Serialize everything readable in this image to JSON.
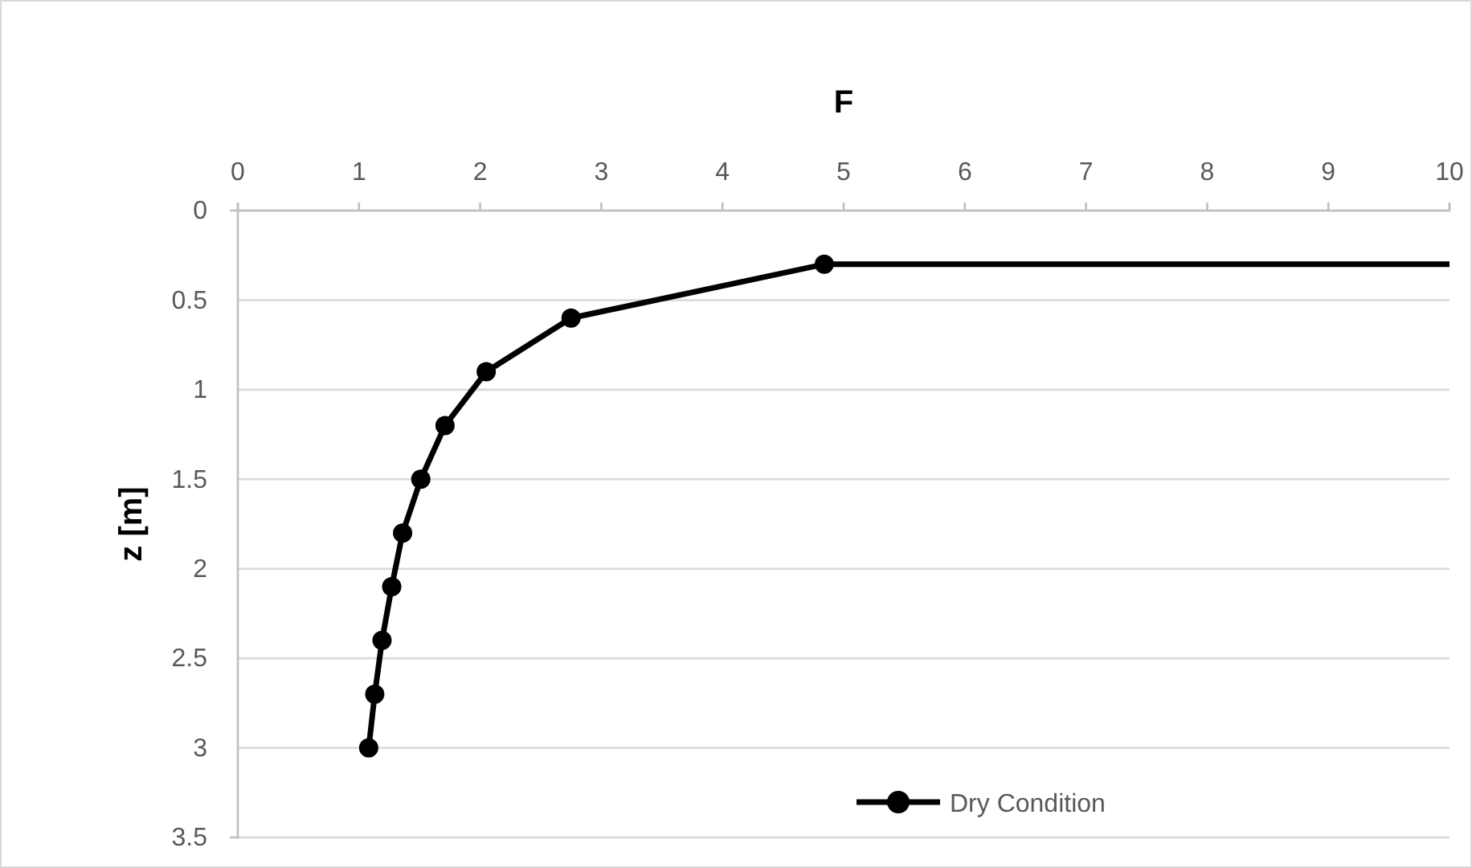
{
  "chart_data": {
    "type": "line",
    "xlabel": "F",
    "ylabel": "z [m]",
    "xlim": [
      0,
      10
    ],
    "xticks": [
      0,
      1,
      2,
      3,
      4,
      5,
      6,
      7,
      8,
      9,
      10
    ],
    "ylim": [
      3.5,
      0
    ],
    "yticks": [
      0,
      0.5,
      1,
      1.5,
      2,
      2.5,
      3,
      3.5
    ],
    "grid": "y",
    "legend": "bottom",
    "marker": "circle",
    "line_style": "solid",
    "series": [
      {
        "name": "Dry Condition",
        "color": "#000000",
        "x": [
          4.84,
          2.75,
          2.05,
          1.71,
          1.51,
          1.36,
          1.27,
          1.19,
          1.13,
          1.08
        ],
        "values": [
          0.3,
          0.6,
          0.9,
          1.2,
          1.5,
          1.8,
          2.1,
          2.4,
          2.7,
          3.0
        ]
      },
      {
        "color": "#000000",
        "marker": "none",
        "x": [
          4.84,
          10
        ],
        "values": [
          0.3,
          0.3
        ]
      }
    ]
  }
}
